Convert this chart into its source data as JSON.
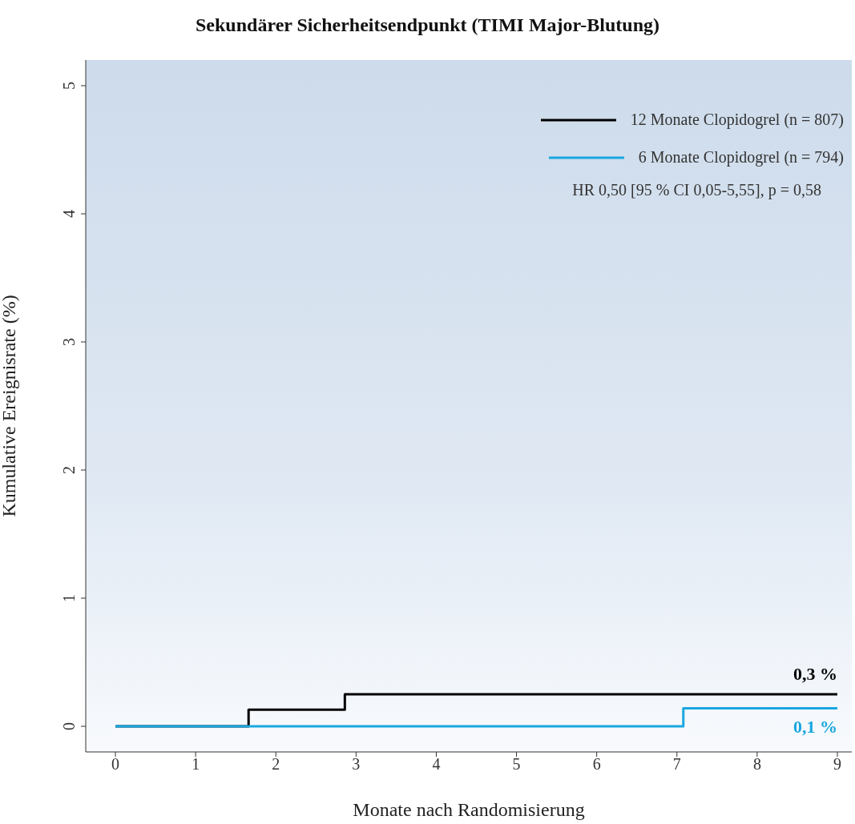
{
  "chart_data": {
    "type": "step",
    "title": "Sekundärer Sicherheitsendpunkt (TIMI Major-Blutung)",
    "xlabel": "Monate nach Randomisierung",
    "ylabel": "Kumulative Ereignisrate (%)",
    "xlim": [
      -0.37,
      9.18
    ],
    "xticks": [
      0,
      1,
      2,
      3,
      4,
      5,
      6,
      7,
      8,
      9
    ],
    "ylim": [
      -0.2,
      5.2
    ],
    "yticks": [
      0,
      1,
      2,
      3,
      4,
      5
    ],
    "grid": false,
    "legend": "top right",
    "marker": "none",
    "line_style": "solid",
    "series": [
      {
        "name": "12 Monate Clopidogrel (n = 807)",
        "color": "#000000",
        "x": [
          0,
          1.66,
          2.86,
          9
        ],
        "values": [
          0,
          0.13,
          0.25,
          0.25
        ],
        "value_labels": [
          null,
          null,
          null,
          "0,3 %"
        ]
      },
      {
        "name": "6 Monate Clopidogrel (n = 794)",
        "color": "#1aa7e0",
        "x": [
          0,
          7.08,
          9
        ],
        "values": [
          0,
          0.14,
          0.14
        ],
        "value_labels": [
          null,
          null,
          "0,1 %"
        ]
      }
    ],
    "annotations": [
      "HR 0,50 [95 % CI 0,05-5,55], p = 0,58"
    ]
  }
}
